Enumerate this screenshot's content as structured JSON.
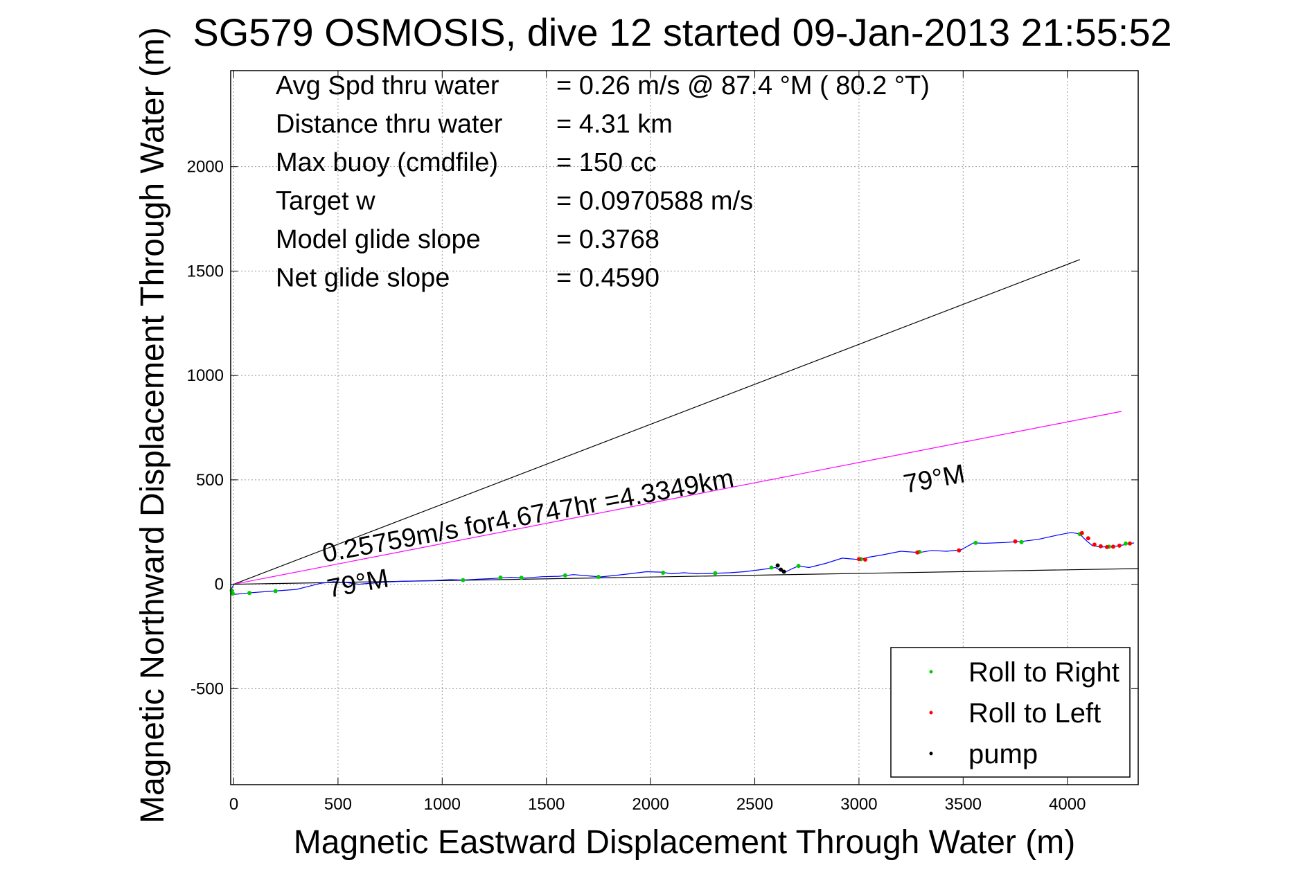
{
  "chart_data": {
    "type": "line",
    "title": "SG579 OSMOSIS, dive 12 started 09-Jan-2013 21:55:52",
    "xlabel": "Magnetic Eastward Displacement Through Water (m)",
    "ylabel": "Magnetic Northward Displacement Through Water (m)",
    "xlim": [
      -15,
      4340
    ],
    "ylim": [
      -960,
      2460
    ],
    "xticks": [
      0,
      500,
      1000,
      1500,
      2000,
      2500,
      3000,
      3500,
      4000
    ],
    "yticks": [
      -500,
      0,
      500,
      1000,
      1500,
      2000
    ],
    "grid": true,
    "legend_position": "bottom-right",
    "colors": {
      "track": "#0000ff",
      "roll_right": "#00cc00",
      "roll_left": "#ff0000",
      "pump": "#000000",
      "course": "#ff00ff",
      "reference": "#000000"
    },
    "stats": [
      {
        "label": "Avg Spd thru water",
        "value": "=  0.26 m/s @  87.4 °M ( 80.2 °T)"
      },
      {
        "label": "Distance thru water",
        "value": "=  4.31 km"
      },
      {
        "label": "Max buoy (cmdfile)",
        "value": "= 150 cc"
      },
      {
        "label": "Target w",
        "value": "= 0.0970588 m/s"
      },
      {
        "label": "Model glide slope",
        "value": "= 0.3768"
      },
      {
        "label": "Net glide slope",
        "value": "= 0.4590"
      }
    ],
    "annotations": {
      "course": "0.25759m/s for4.6747hr =4.3349km",
      "course_heading": "79°M",
      "track_heading": "79°M"
    },
    "legend": [
      {
        "label": "Roll to Right",
        "color": "#00cc00"
      },
      {
        "label": "Roll to Left",
        "color": "#ff0000"
      },
      {
        "label": "pump",
        "color": "#000000"
      }
    ],
    "lines": [
      {
        "name": "reference",
        "color": "#000000",
        "x": [
          0,
          4060
        ],
        "y": [
          0,
          1555
        ]
      },
      {
        "name": "course",
        "color": "#ff00ff",
        "x": [
          0,
          4260
        ],
        "y": [
          0,
          828
        ]
      },
      {
        "name": "heading",
        "color": "#000000",
        "x": [
          0,
          4340
        ],
        "y": [
          0,
          75
        ]
      }
    ],
    "track": {
      "x": [
        0,
        -10,
        -8,
        5,
        40,
        90,
        160,
        230,
        300,
        360,
        420,
        480,
        540,
        600,
        660,
        720,
        800,
        880,
        960,
        1040,
        1100,
        1170,
        1250,
        1330,
        1400,
        1480,
        1560,
        1630,
        1700,
        1760,
        1830,
        1900,
        1980,
        2050,
        2100,
        2160,
        2220,
        2300,
        2380,
        2450,
        2530,
        2600,
        2640,
        2670,
        2710,
        2760,
        2840,
        2920,
        3000,
        3050,
        3110,
        3200,
        3290,
        3350,
        3420,
        3490,
        3550,
        3600,
        3700,
        3780,
        3860,
        3950,
        4020,
        4060,
        4090,
        4120,
        4160,
        4200,
        4240,
        4290,
        4320
      ],
      "y": [
        0,
        -20,
        -40,
        -48,
        -45,
        -40,
        -35,
        -30,
        -25,
        -10,
        5,
        12,
        8,
        0,
        5,
        10,
        14,
        16,
        18,
        22,
        20,
        24,
        28,
        33,
        30,
        36,
        38,
        46,
        40,
        35,
        42,
        50,
        60,
        58,
        50,
        55,
        50,
        52,
        55,
        60,
        70,
        80,
        55,
        70,
        88,
        80,
        100,
        125,
        118,
        130,
        140,
        158,
        152,
        162,
        158,
        165,
        198,
        196,
        200,
        205,
        215,
        235,
        248,
        240,
        210,
        185,
        178,
        180,
        183,
        192,
        198
      ]
    },
    "roll_right": {
      "x": [
        -10,
        -5,
        75,
        200,
        1100,
        1280,
        1380,
        1590,
        1750,
        2060,
        2310,
        2580,
        2710,
        3010,
        3290,
        3560,
        3780,
        4060,
        4200,
        4280
      ],
      "y": [
        -30,
        -45,
        -42,
        -33,
        20,
        32,
        31,
        42,
        35,
        55,
        53,
        80,
        88,
        120,
        155,
        198,
        202,
        240,
        180,
        195
      ]
    },
    "roll_left": {
      "x": [
        3000,
        3030,
        3280,
        3480,
        3750,
        4070,
        4100,
        4130,
        4160,
        4190,
        4220,
        4250,
        4300
      ],
      "y": [
        120,
        118,
        152,
        162,
        205,
        245,
        220,
        190,
        182,
        178,
        180,
        185,
        195
      ]
    },
    "pump": {
      "x": [
        2610,
        2625,
        2640
      ],
      "y": [
        90,
        70,
        60
      ]
    }
  }
}
